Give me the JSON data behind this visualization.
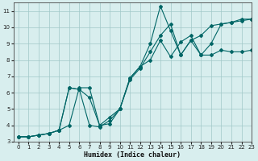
{
  "xlabel": "Humidex (Indice chaleur)",
  "ylabel": "",
  "bg_color": "#d8eeee",
  "grid_color": "#a0c8c8",
  "line_color": "#006666",
  "xlim": [
    -0.5,
    23
  ],
  "ylim": [
    3,
    11.5
  ],
  "xticks": [
    0,
    1,
    2,
    3,
    4,
    5,
    6,
    7,
    8,
    9,
    10,
    11,
    12,
    13,
    14,
    15,
    16,
    17,
    18,
    19,
    20,
    21,
    22,
    23
  ],
  "yticks": [
    3,
    4,
    5,
    6,
    7,
    8,
    9,
    10,
    11
  ],
  "line1_x": [
    0,
    1,
    2,
    3,
    4,
    5,
    6,
    7,
    8,
    9,
    10,
    11,
    12,
    13,
    14,
    15,
    16,
    17,
    18,
    19,
    20,
    21,
    22,
    23
  ],
  "line1_y": [
    3.3,
    3.3,
    3.4,
    3.5,
    3.7,
    4.0,
    6.3,
    6.3,
    4.0,
    4.5,
    5.0,
    6.8,
    7.5,
    8.5,
    9.5,
    10.2,
    8.3,
    9.2,
    9.5,
    10.1,
    10.2,
    10.3,
    10.4,
    10.5
  ],
  "line2_x": [
    0,
    1,
    2,
    3,
    4,
    5,
    6,
    7,
    8,
    9,
    10,
    11,
    12,
    13,
    14,
    15,
    16,
    17,
    18,
    19,
    20,
    21,
    22,
    23
  ],
  "line2_y": [
    3.3,
    3.3,
    3.4,
    3.5,
    3.7,
    6.3,
    6.2,
    5.7,
    4.0,
    4.1,
    5.0,
    6.9,
    7.6,
    9.0,
    11.3,
    9.8,
    8.3,
    9.2,
    8.3,
    9.0,
    10.2,
    10.3,
    10.5,
    10.5
  ],
  "line3_x": [
    0,
    1,
    2,
    3,
    4,
    5,
    6,
    7,
    8,
    9,
    10,
    11,
    12,
    13,
    14,
    15,
    16,
    17,
    18,
    19,
    20,
    21,
    22,
    23
  ],
  "line3_y": [
    3.3,
    3.3,
    3.4,
    3.5,
    3.7,
    6.3,
    6.2,
    4.0,
    3.9,
    4.3,
    5.0,
    6.9,
    7.6,
    8.0,
    9.2,
    8.2,
    9.1,
    9.5,
    8.3,
    8.3,
    8.6,
    8.5,
    8.5,
    8.6
  ]
}
